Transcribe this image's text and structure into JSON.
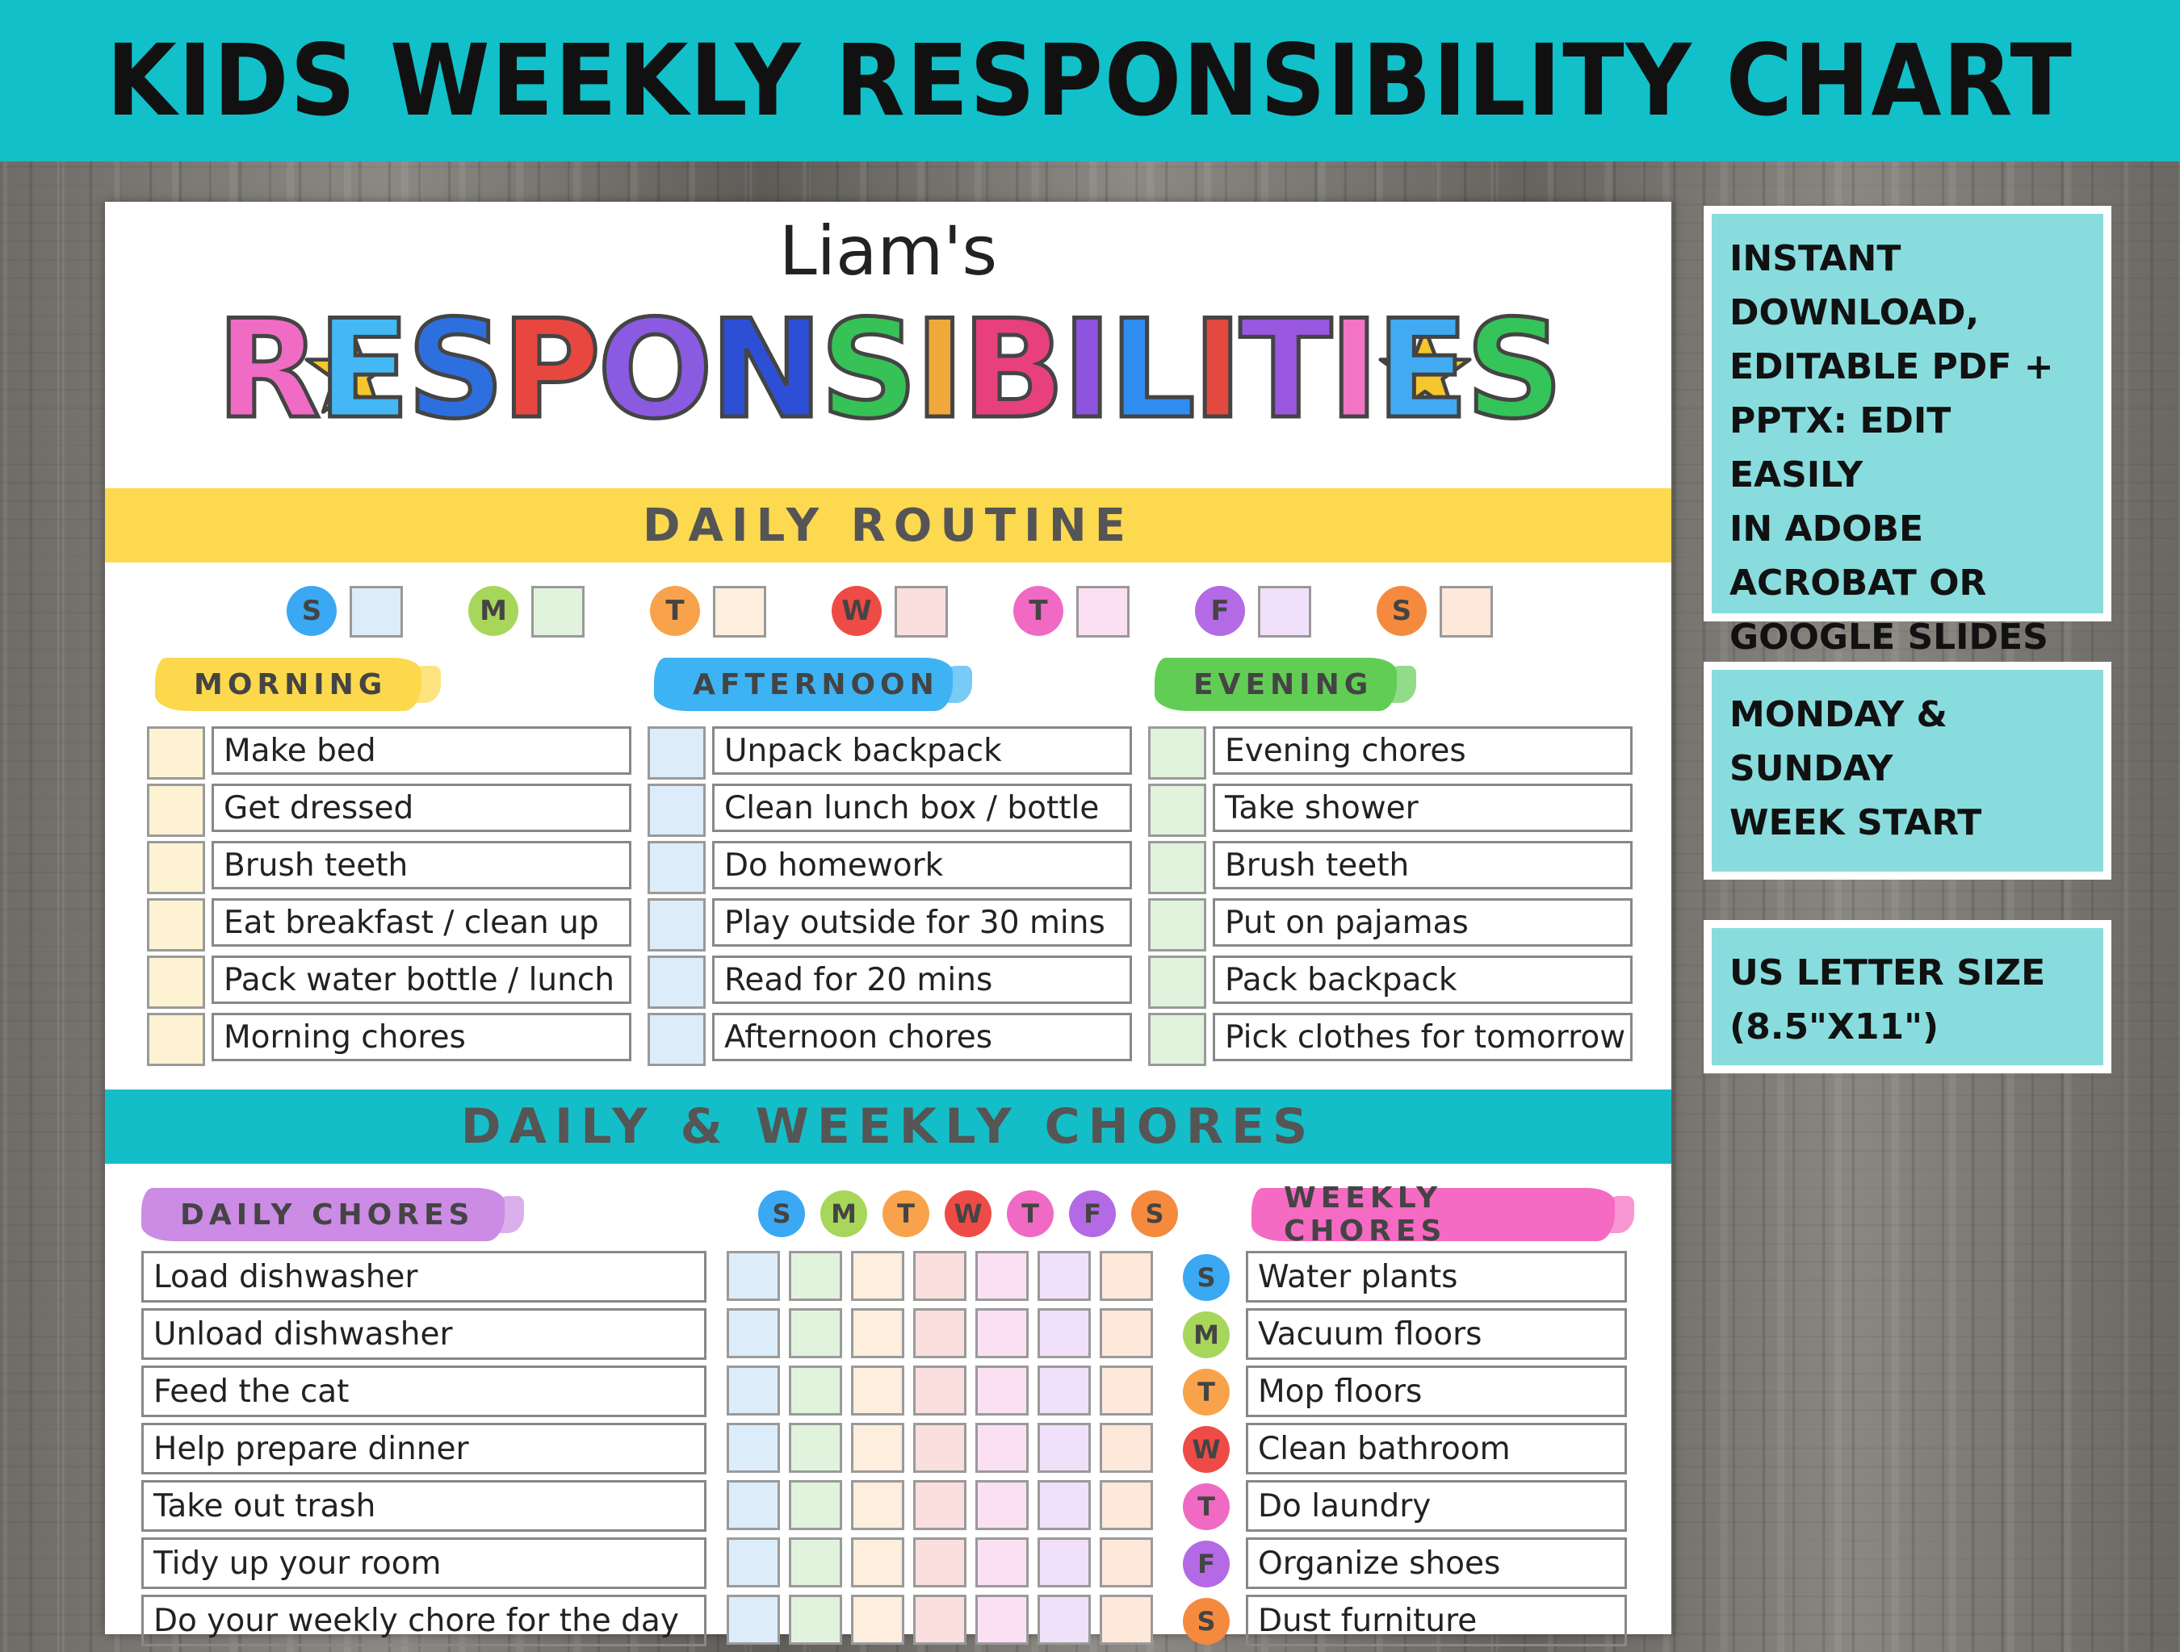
{
  "banner": {
    "title": "KIDS WEEKLY RESPONSIBILITY CHART"
  },
  "sheet": {
    "name": "Liam's",
    "title_letters": [
      {
        "char": "R",
        "color": "#f06bc4"
      },
      {
        "char": "E",
        "color": "#43b8f5"
      },
      {
        "char": "S",
        "color": "#2e6fe0"
      },
      {
        "char": "P",
        "color": "#e8473f"
      },
      {
        "char": "O",
        "color": "#8a5ae0"
      },
      {
        "char": "N",
        "color": "#2d4fd6"
      },
      {
        "char": "S",
        "color": "#36c257"
      },
      {
        "char": "I",
        "color": "#f0a83a"
      },
      {
        "char": "B",
        "color": "#e7407c"
      },
      {
        "char": "I",
        "color": "#8e53df"
      },
      {
        "char": "L",
        "color": "#2f8cf0"
      },
      {
        "char": "I",
        "color": "#e2493f"
      },
      {
        "char": "T",
        "color": "#9a58e0"
      },
      {
        "char": "I",
        "color": "#f274c4"
      },
      {
        "char": "E",
        "color": "#41aaf2"
      },
      {
        "char": "S",
        "color": "#35c459"
      }
    ],
    "daily_routine_label": "DAILY ROUTINE",
    "days": [
      {
        "letter": "S",
        "color": "#3aa8f2",
        "box_color": "#dcecf9"
      },
      {
        "letter": "M",
        "color": "#a7d65b",
        "box_color": "#e2f3dd"
      },
      {
        "letter": "T",
        "color": "#f8a34b",
        "box_color": "#fdeedd"
      },
      {
        "letter": "W",
        "color": "#ef4b46",
        "box_color": "#fbdede"
      },
      {
        "letter": "T",
        "color": "#f06ac4",
        "box_color": "#fbe0f3"
      },
      {
        "letter": "F",
        "color": "#b36ae4",
        "box_color": "#f0e0fa"
      },
      {
        "letter": "S",
        "color": "#f58a3e",
        "box_color": "#fde8da"
      }
    ],
    "routines": [
      {
        "label": "MORNING",
        "brush_color": "#fcd94c",
        "box_color": "#fdf3d3",
        "tasks": [
          "Make bed",
          "Get dressed",
          "Brush teeth",
          "Eat breakfast / clean up",
          "Pack water bottle / lunch",
          "Morning chores"
        ]
      },
      {
        "label": "AFTERNOON",
        "brush_color": "#3eb3f4",
        "box_color": "#dcecf9",
        "tasks": [
          "Unpack backpack",
          "Clean lunch box / bottle",
          "Do homework",
          "Play outside for 30 mins",
          "Read for 20 mins",
          "Afternoon chores"
        ]
      },
      {
        "label": "EVENING",
        "brush_color": "#62cd55",
        "box_color": "#e2f3dd",
        "tasks": [
          "Evening chores",
          "Take shower",
          "Brush teeth",
          "Put on pajamas",
          "Pack backpack",
          "Pick clothes for tomorrow"
        ]
      }
    ],
    "chores_label": "DAILY & WEEKLY CHORES",
    "daily_chores": {
      "label": "DAILY CHORES",
      "brush_color": "#cc8be4",
      "tasks": [
        "Load dishwasher",
        "Unload dishwasher",
        "Feed the cat",
        "Help prepare dinner",
        "Take out trash",
        "Tidy up your room",
        "Do your weekly chore for the day"
      ]
    },
    "weekly_chores": {
      "label": "WEEKLY CHORES",
      "brush_color": "#f56ac2",
      "tasks": [
        "Water plants",
        "Vacuum floors",
        "Mop floors",
        "Clean bathroom",
        "Do laundry",
        "Organize shoes",
        "Dust furniture"
      ]
    }
  },
  "info_boxes": [
    {
      "lines": [
        "INSTANT",
        "DOWNLOAD,",
        "EDITABLE PDF +",
        "PPTX: EDIT EASILY",
        "IN ADOBE",
        "ACROBAT OR",
        "GOOGLE SLIDES"
      ]
    },
    {
      "lines": [
        "MONDAY &",
        "SUNDAY",
        "WEEK START"
      ]
    },
    {
      "lines": [
        "US LETTER SIZE",
        "(8.5\"X11\")"
      ]
    }
  ],
  "icons": [
    "star-icon"
  ]
}
